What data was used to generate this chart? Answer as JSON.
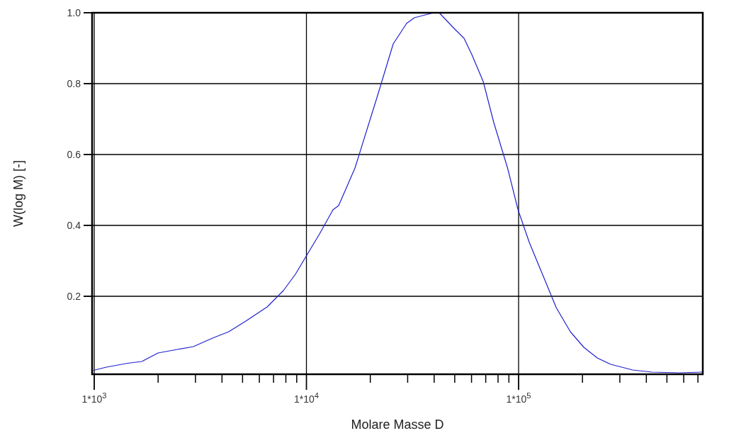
{
  "chart_data": {
    "type": "line",
    "xlabel": "Molare Masse D",
    "ylabel": "W(log M) [-]",
    "log": "x",
    "grid": true,
    "marker": "none",
    "line_style": "solid",
    "xlim": [
      977,
      738000
    ],
    "ylim": [
      -0.02,
      1.0
    ],
    "xticks": [
      {
        "value": 1000,
        "label": "1*10$^{3}$"
      },
      {
        "value": 2000,
        "label": null
      },
      {
        "value": 3000,
        "label": null
      },
      {
        "value": 4000,
        "label": null
      },
      {
        "value": 5000,
        "label": null
      },
      {
        "value": 6000,
        "label": null
      },
      {
        "value": 7000,
        "label": null
      },
      {
        "value": 8000,
        "label": null
      },
      {
        "value": 9000,
        "label": null
      },
      {
        "value": 10000,
        "label": "1*10$^{4}$"
      },
      {
        "value": 20000,
        "label": null
      },
      {
        "value": 30000,
        "label": null
      },
      {
        "value": 40000,
        "label": null
      },
      {
        "value": 50000,
        "label": null
      },
      {
        "value": 60000,
        "label": null
      },
      {
        "value": 70000,
        "label": null
      },
      {
        "value": 80000,
        "label": null
      },
      {
        "value": 90000,
        "label": null
      },
      {
        "value": 100000,
        "label": "1*10$^{5}$"
      },
      {
        "value": 200000,
        "label": null
      },
      {
        "value": 300000,
        "label": null
      },
      {
        "value": 400000,
        "label": null
      },
      {
        "value": 500000,
        "label": null
      },
      {
        "value": 600000,
        "label": null
      },
      {
        "value": 700000,
        "label": null
      }
    ],
    "yticks": [
      0.2,
      0.4,
      0.6,
      0.8,
      {
        "value": 1.0,
        "label": "1.0"
      }
    ],
    "series": [
      {
        "color": "#2020d0",
        "x": [
          992,
          1140,
          1435,
          1675,
          1998,
          2460,
          2933,
          3611,
          4305,
          5181,
          6531,
          7787,
          8870,
          10040,
          11270,
          11530,
          13340,
          14190,
          16940,
          21480,
          25640,
          29660,
          32270,
          39720,
          42270,
          48870,
          55300,
          60200,
          68100,
          76400,
          88700,
          99400,
          112300,
          130000,
          150400,
          175400,
          202900,
          234900,
          271700,
          345000,
          424800,
          568400,
          733000
        ],
        "values": [
          -0.009,
          0.0,
          0.011,
          0.016,
          0.04,
          0.05,
          0.058,
          0.082,
          0.1,
          0.13,
          0.17,
          0.216,
          0.262,
          0.316,
          0.366,
          0.376,
          0.444,
          0.456,
          0.562,
          0.76,
          0.912,
          0.97,
          0.986,
          1.0,
          1.0,
          0.96,
          0.928,
          0.882,
          0.806,
          0.69,
          0.562,
          0.444,
          0.352,
          0.26,
          0.168,
          0.1,
          0.056,
          0.026,
          0.008,
          -0.008,
          -0.014,
          -0.016,
          -0.014
        ]
      }
    ]
  }
}
